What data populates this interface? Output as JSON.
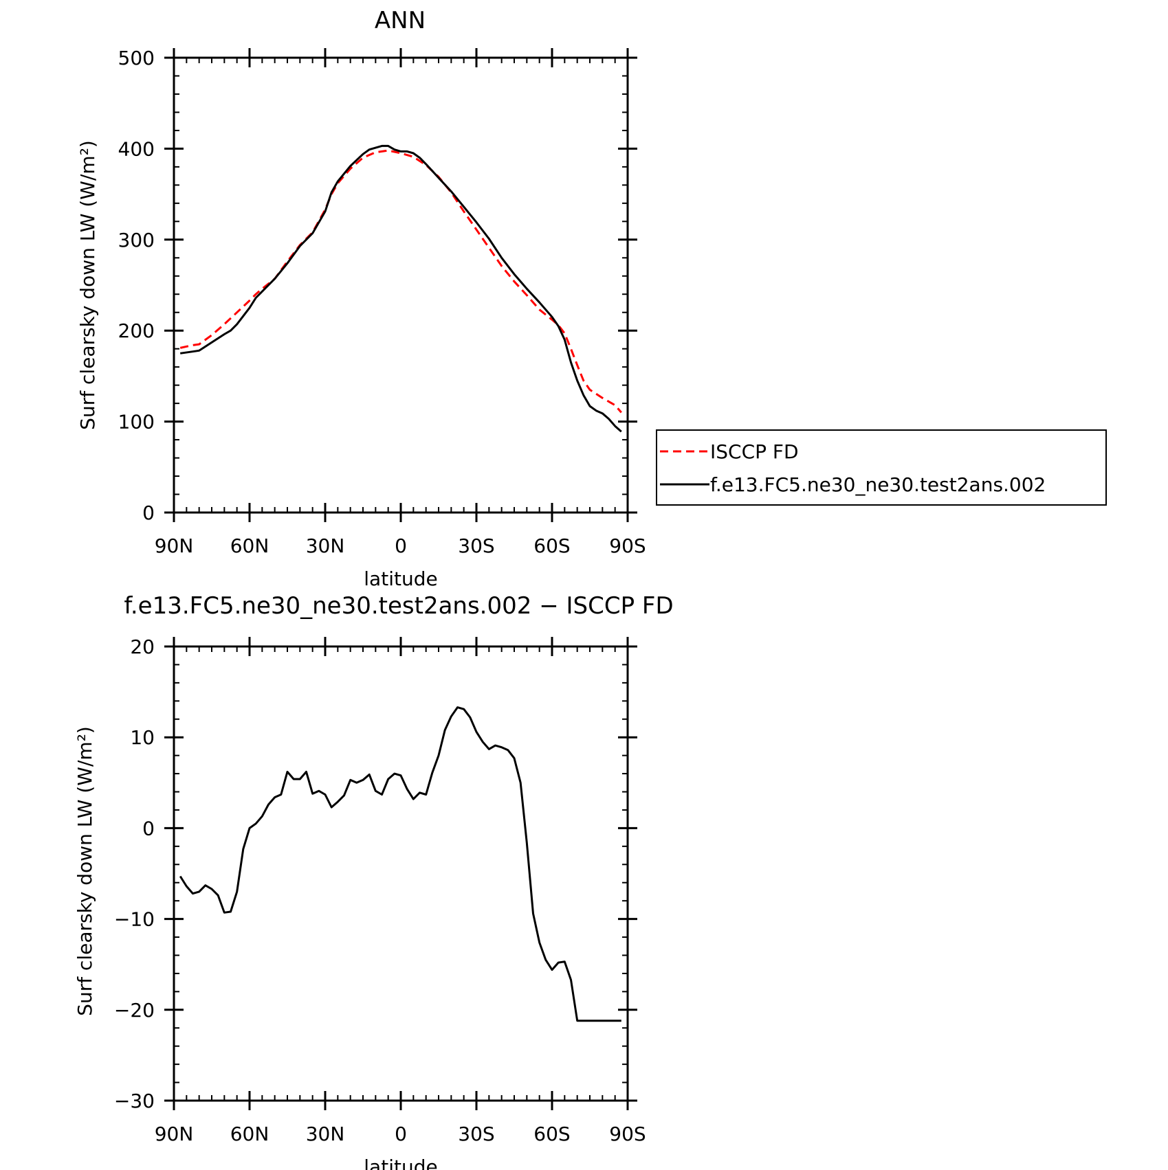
{
  "chart_data": [
    {
      "type": "line",
      "title": "ANN",
      "xlabel": "latitude",
      "ylabel": "Surf clearsky down LW (W/m²)",
      "xlim": [
        90,
        -90
      ],
      "ylim": [
        0,
        500
      ],
      "x_ticks": [
        90,
        60,
        30,
        0,
        -30,
        -60,
        -90
      ],
      "x_tick_labels": [
        "90N",
        "60N",
        "30N",
        "0",
        "30S",
        "60S",
        "90S"
      ],
      "y_ticks": [
        0,
        100,
        200,
        300,
        400,
        500
      ],
      "y_tick_labels": [
        "0",
        "100",
        "200",
        "300",
        "400",
        "500"
      ],
      "legend": "right",
      "series": [
        {
          "name": "ISCCP FD",
          "color": "#ff0000",
          "style": "dashed",
          "x": [
            87.5,
            82.5,
            80,
            75,
            70,
            65,
            60,
            57.5,
            55,
            50,
            45,
            40,
            35,
            30,
            27.5,
            25,
            20,
            15,
            10,
            5,
            0,
            -5,
            -10,
            -15,
            -20,
            -25,
            -30,
            -35,
            -40,
            -45,
            -50,
            -55,
            -60,
            -62.5,
            -65,
            -67.5,
            -70,
            -72.5,
            -75,
            -80,
            -85,
            -87.5
          ],
          "y": [
            181,
            184,
            185,
            195,
            207,
            220,
            233,
            240,
            246,
            257,
            276,
            294,
            308,
            333,
            350,
            362,
            378,
            390,
            396,
            398,
            395,
            391,
            382,
            369,
            352,
            331,
            311,
            291,
            271,
            254,
            239,
            223,
            212,
            206,
            197,
            180,
            162,
            145,
            135,
            126,
            118,
            110
          ]
        },
        {
          "name": "f.e13.FC5.ne30_ne30.test2ans.002",
          "color": "#000000",
          "style": "solid",
          "x": [
            87.5,
            82.5,
            80,
            75,
            70,
            67.5,
            65,
            60,
            57.5,
            55,
            50,
            45,
            40,
            35,
            30,
            27.5,
            25,
            20,
            15,
            12.5,
            10,
            7.5,
            5,
            2.5,
            0,
            -2.5,
            -5,
            -7.5,
            -10,
            -15,
            -20,
            -25,
            -30,
            -35,
            -40,
            -45,
            -50,
            -55,
            -60,
            -62.5,
            -65,
            -67.5,
            -70,
            -72.5,
            -75,
            -77.5,
            -80,
            -82.5,
            -85,
            -87.5
          ],
          "y": [
            175,
            177,
            178,
            187,
            196,
            200,
            207,
            225,
            236,
            243,
            257,
            274,
            293,
            307,
            331,
            352,
            364,
            381,
            394,
            399,
            401,
            403,
            403,
            399,
            397,
            397,
            395,
            390,
            383,
            368,
            353,
            336,
            319,
            301,
            280,
            262,
            246,
            231,
            215,
            205,
            190,
            165,
            145,
            129,
            117,
            112,
            109,
            103,
            95,
            89
          ]
        }
      ]
    },
    {
      "type": "line",
      "title": "f.e13.FC5.ne30_ne30.test2ans.002 − ISCCP FD",
      "xlabel": "latitude",
      "ylabel": "Surf clearsky down LW (W/m²)",
      "xlim": [
        90,
        -90
      ],
      "ylim": [
        -30,
        20
      ],
      "x_ticks": [
        90,
        60,
        30,
        0,
        -30,
        -60,
        -90
      ],
      "x_tick_labels": [
        "90N",
        "60N",
        "30N",
        "0",
        "30S",
        "60S",
        "90S"
      ],
      "y_ticks": [
        -30,
        -20,
        -10,
        0,
        10,
        20
      ],
      "y_tick_labels": [
        "−30",
        "−20",
        "−10",
        "0",
        "10",
        "20"
      ],
      "series": [
        {
          "color": "#000000",
          "style": "solid",
          "x": [
            87.5,
            85,
            82.5,
            80,
            77.5,
            75,
            72.5,
            70,
            67.5,
            65,
            62.5,
            60,
            57.5,
            55,
            52.5,
            50,
            47.5,
            45,
            42.5,
            40,
            37.5,
            35,
            32.5,
            30,
            27.5,
            25,
            22.5,
            20,
            17.5,
            15,
            12.5,
            10,
            7.5,
            5,
            2.5,
            0,
            -2.5,
            -5,
            -7.5,
            -10,
            -12.5,
            -15,
            -17.5,
            -20,
            -22.5,
            -25,
            -27.5,
            -30,
            -32.5,
            -35,
            -37.5,
            -40,
            -42.5,
            -45,
            -47.5,
            -50,
            -52.5,
            -55,
            -57.5,
            -60,
            -62.5,
            -65,
            -67.5,
            -70,
            -72.5,
            -75,
            -77.5,
            -80,
            -82.5,
            -85,
            -87.5
          ],
          "y": [
            -5.3,
            -6.4,
            -7.2,
            -7.0,
            -6.3,
            -6.7,
            -7.4,
            -9.3,
            -9.2,
            -7.0,
            -2.3,
            0.0,
            0.5,
            1.3,
            2.6,
            3.4,
            3.7,
            6.2,
            5.4,
            5.4,
            6.2,
            3.8,
            4.1,
            3.7,
            2.3,
            2.9,
            3.6,
            5.3,
            5.0,
            5.3,
            5.9,
            4.1,
            3.7,
            5.4,
            6.0,
            5.8,
            4.3,
            3.2,
            3.9,
            3.7,
            6.1,
            8.0,
            10.8,
            12.3,
            13.3,
            13.1,
            12.2,
            10.6,
            9.5,
            8.7,
            9.1,
            8.9,
            8.6,
            7.7,
            5.0,
            -1.6,
            -9.4,
            -12.6,
            -14.5,
            -15.6,
            -14.8,
            -14.7,
            -16.7,
            -21.2,
            -21.2,
            -21.2,
            -21.2,
            -21.2,
            -21.2,
            -21.2,
            -21.2
          ]
        }
      ]
    }
  ]
}
